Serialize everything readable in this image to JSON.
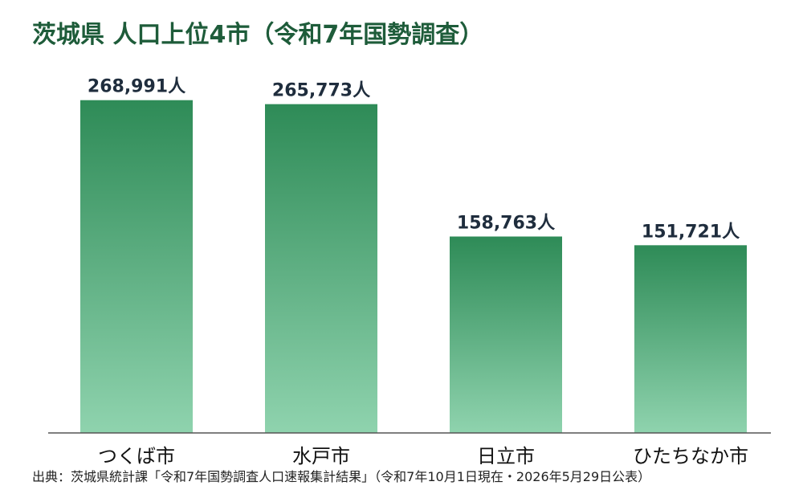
{
  "title": "茨城県 人口上位4市（令和7年国勢調査）",
  "source": "出典：茨城県統計課「令和7年国勢調査人口速報集計結果」（令和7年10月1日現在・2026年5月29日公表）",
  "colors": {
    "title": "#1e5c3a",
    "bar_top": "#2e8b57",
    "bar_bottom": "#8fd3ae",
    "value_label": "#1f2d3d",
    "category_label": "#111111",
    "baseline": "#555555"
  },
  "chart_data": {
    "type": "bar",
    "categories": [
      "つくば市",
      "水戸市",
      "日立市",
      "ひたちなか市"
    ],
    "values": [
      268991,
      265773,
      158763,
      151721
    ],
    "value_labels": [
      "268,991人",
      "265,773人",
      "158,763人",
      "151,721人"
    ],
    "ylim": [
      0,
      311000
    ],
    "grid": false,
    "legend": "none"
  }
}
